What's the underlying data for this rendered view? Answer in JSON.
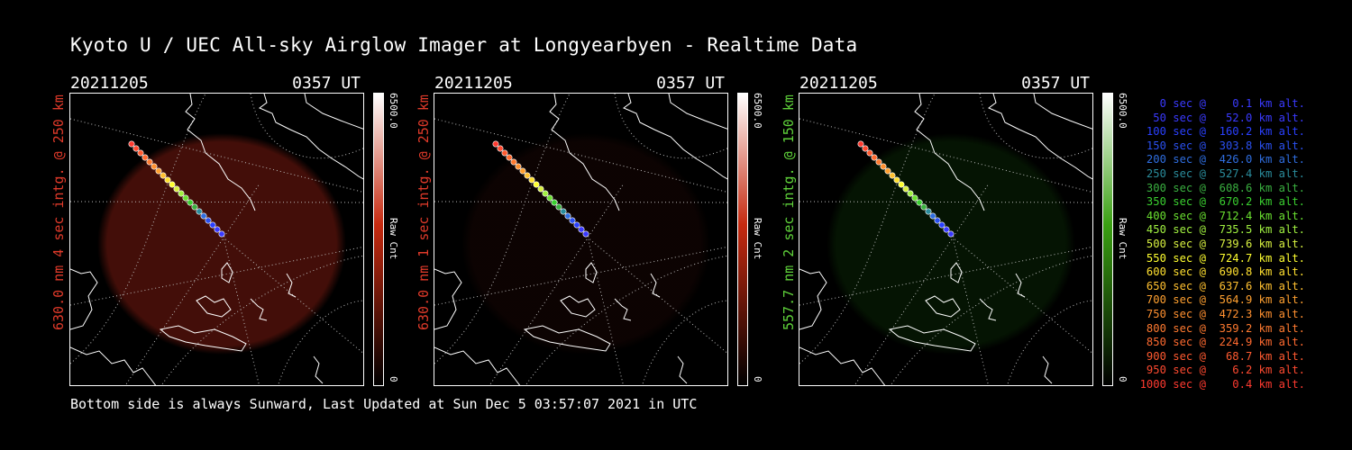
{
  "title": "Kyoto U / UEC All-sky Airglow Imager at Longyearbyen - Realtime Data",
  "panels": [
    {
      "date": "20211205",
      "time": "0357 UT",
      "label": "630.0 nm 4 sec intg. @ 250 km",
      "label_color": "#e03a2a",
      "glow": "#7a1a10",
      "glow_level": 0.55,
      "cbar_max": "6500.0",
      "cbar_unit": "Raw Cnt",
      "cbar_min": "0",
      "cbar_color": "#c62a10"
    },
    {
      "date": "20211205",
      "time": "0357 UT",
      "label": "630.0 nm 1 sec intg. @ 250 km",
      "label_color": "#e03a2a",
      "glow": "#2a0a06",
      "glow_level": 0.3,
      "cbar_max": "6500.0",
      "cbar_unit": "Raw Cnt",
      "cbar_min": "0",
      "cbar_color": "#c62a10"
    },
    {
      "date": "20211205",
      "time": "0357 UT",
      "label": "557.7 nm 2 sec intg. @ 150 km",
      "label_color": "#5fd23a",
      "glow": "#0e3a08",
      "glow_level": 0.35,
      "cbar_max": "6500.0",
      "cbar_unit": "Raw Cnt",
      "cbar_min": "0",
      "cbar_color": "#3aa012"
    }
  ],
  "footer": "Bottom side is always Sunward, Last Updated at Sun Dec  5 03:57:07 2021 in UTC",
  "legend": [
    {
      "text": "0 sec @    0.1 km alt.",
      "color": "#3a3aff"
    },
    {
      "text": "50 sec @   52.0 km alt.",
      "color": "#3a3aff"
    },
    {
      "text": "100 sec @  160.2 km alt.",
      "color": "#2a40ff"
    },
    {
      "text": "150 sec @  303.8 km alt.",
      "color": "#2a50f0"
    },
    {
      "text": "200 sec @  426.0 km alt.",
      "color": "#2f6ee0"
    },
    {
      "text": "250 sec @  527.4 km alt.",
      "color": "#2a8c9c"
    },
    {
      "text": "300 sec @  608.6 km alt.",
      "color": "#3ab040"
    },
    {
      "text": "350 sec @  670.2 km alt.",
      "color": "#3ad030"
    },
    {
      "text": "400 sec @  712.4 km alt.",
      "color": "#6ae030"
    },
    {
      "text": "450 sec @  735.5 km alt.",
      "color": "#a0f040"
    },
    {
      "text": "500 sec @  739.6 km alt.",
      "color": "#d8f040"
    },
    {
      "text": "550 sec @  724.7 km alt.",
      "color": "#ffff30"
    },
    {
      "text": "600 sec @  690.8 km alt.",
      "color": "#ffe030"
    },
    {
      "text": "650 sec @  637.6 km alt.",
      "color": "#ffc030"
    },
    {
      "text": "700 sec @  564.9 km alt.",
      "color": "#ffa030"
    },
    {
      "text": "750 sec @  472.3 km alt.",
      "color": "#ff9030"
    },
    {
      "text": "800 sec @  359.2 km alt.",
      "color": "#ff7a30"
    },
    {
      "text": "850 sec @  224.9 km alt.",
      "color": "#ff6a30"
    },
    {
      "text": "900 sec @   68.7 km alt.",
      "color": "#ff5a30"
    },
    {
      "text": "950 sec @    6.2 km alt.",
      "color": "#ff4a30"
    },
    {
      "text": "1000 sec @    0.4 km alt.",
      "color": "#ff3a30"
    }
  ]
}
